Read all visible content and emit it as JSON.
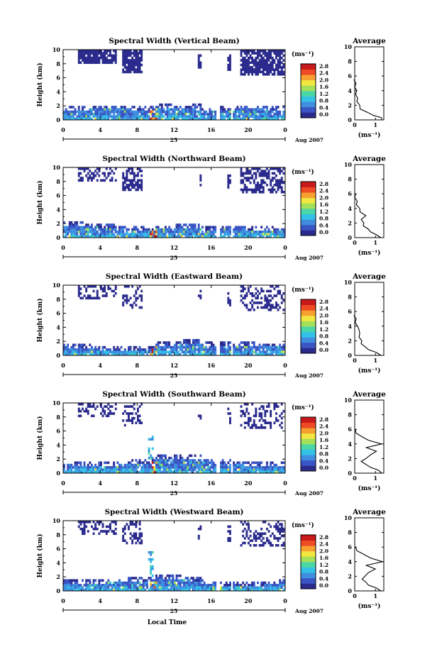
{
  "figure": {
    "xlabel_bottom": "Local Time",
    "date_label": "Aug 2007",
    "day_label": "25",
    "colorbar_unit": "(ms⁻¹)",
    "colorbar_ticks": [
      "0.0",
      "0.4",
      "0.8",
      "1.2",
      "1.6",
      "2.0",
      "2.4",
      "2.8"
    ],
    "colormap": [
      "#2b2b8e",
      "#3a55c4",
      "#3f8ee0",
      "#33c2e6",
      "#4bd6a6",
      "#a4e05a",
      "#f2e640",
      "#f7a030",
      "#ee4a24",
      "#c81a1a"
    ],
    "avg_title": "Average",
    "avg_xlabel": "(ms⁻¹)",
    "avg_xticks": [
      "0",
      "1"
    ],
    "height_label": "Height (km)",
    "height_ticks": [
      "0",
      "2",
      "4",
      "6",
      "8",
      "10"
    ],
    "time_ticks": [
      "0",
      "4",
      "8",
      "12",
      "16",
      "20",
      "0"
    ]
  },
  "chart_data": [
    {
      "type": "heatmap",
      "title": "Spectral Width (Vertical Beam)",
      "ylabel": "Height (km)",
      "ylim": [
        0,
        10
      ],
      "xlim": [
        0,
        24
      ],
      "average_profile": {
        "title": "Average",
        "xlim": [
          0,
          1.4
        ],
        "heights": [
          0,
          0.3,
          0.6,
          1,
          1.5,
          2,
          2.5,
          3,
          3.5,
          4,
          4.5,
          5,
          5.5
        ],
        "values": [
          1.35,
          1.25,
          0.95,
          0.6,
          0.3,
          0.2,
          0.15,
          0.1,
          0.08,
          0.06,
          0.04,
          0.02,
          0.0
        ]
      }
    },
    {
      "type": "heatmap",
      "title": "Spectral Width (Northward Beam)",
      "ylabel": "Height (km)",
      "ylim": [
        0,
        10
      ],
      "xlim": [
        0,
        24
      ],
      "average_profile": {
        "title": "Average",
        "xlim": [
          0,
          1.4
        ],
        "heights": [
          0,
          0.4,
          0.8,
          1.2,
          1.6,
          2,
          2.5,
          3,
          3.5,
          4,
          4.5,
          5,
          5.5,
          6
        ],
        "values": [
          1.3,
          1.0,
          0.8,
          0.6,
          0.45,
          0.4,
          0.35,
          0.5,
          0.3,
          0.2,
          0.12,
          0.08,
          0.04,
          0.0
        ]
      }
    },
    {
      "type": "heatmap",
      "title": "Spectral Width (Eastward Beam)",
      "ylabel": "Height (km)",
      "ylim": [
        0,
        10
      ],
      "xlim": [
        0,
        24
      ],
      "average_profile": {
        "title": "Average",
        "xlim": [
          0,
          1.4
        ],
        "heights": [
          0,
          0.4,
          0.8,
          1.2,
          1.6,
          2,
          2.5,
          3,
          3.5,
          4,
          4.5,
          5,
          5.5
        ],
        "values": [
          1.3,
          1.0,
          0.7,
          0.45,
          0.35,
          0.3,
          0.25,
          0.2,
          0.25,
          0.1,
          0.06,
          0.03,
          0.0
        ]
      }
    },
    {
      "type": "heatmap",
      "title": "Spectral Width (Southward Beam)",
      "ylabel": "Height (km)",
      "ylim": [
        0,
        10
      ],
      "xlim": [
        0,
        24
      ],
      "average_profile": {
        "title": "Average",
        "xlim": [
          0,
          1.4
        ],
        "heights": [
          0,
          0.4,
          0.8,
          1.2,
          1.6,
          2,
          2.5,
          3,
          3.5,
          4,
          4.5,
          5,
          5.5,
          6
        ],
        "values": [
          1.35,
          1.1,
          0.8,
          0.5,
          0.35,
          0.5,
          0.8,
          1.0,
          0.6,
          1.25,
          0.7,
          0.3,
          0.1,
          0.0
        ]
      }
    },
    {
      "type": "heatmap",
      "title": "Spectral Width (Westward Beam)",
      "ylabel": "Height (km)",
      "ylim": [
        0,
        10
      ],
      "xlim": [
        0,
        24
      ],
      "average_profile": {
        "title": "Average",
        "xlim": [
          0,
          1.4
        ],
        "heights": [
          0,
          0.4,
          0.8,
          1.2,
          1.6,
          2,
          2.5,
          3,
          3.5,
          4,
          4.5,
          5,
          5.5,
          6
        ],
        "values": [
          1.3,
          1.0,
          0.7,
          0.5,
          0.4,
          0.45,
          0.7,
          0.95,
          0.6,
          1.3,
          0.8,
          0.4,
          0.15,
          0.0
        ]
      }
    }
  ]
}
